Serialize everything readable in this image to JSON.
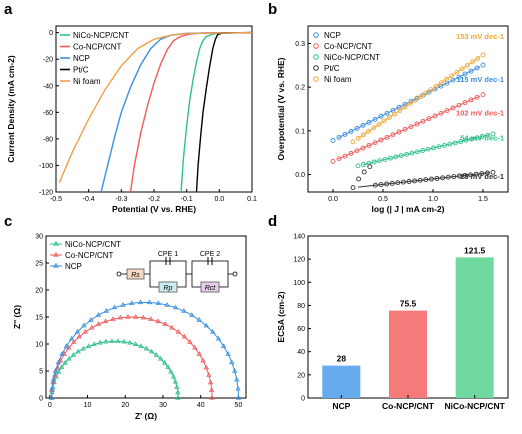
{
  "chart_data": [
    {
      "panel": "a",
      "type": "line",
      "xlabel": "Potential (V vs. RHE)",
      "ylabel": "Current Density (mA cm-2)",
      "xlim": [
        -0.5,
        0.1
      ],
      "ylim": [
        -120,
        5
      ],
      "xticks": [
        "-0.5",
        "-0.4",
        "-0.3",
        "-0.2",
        "-0.1",
        "0.0",
        "0.1"
      ],
      "yticks": [
        "-120",
        "-100",
        "-80",
        "-60",
        "-40",
        "-20",
        "0"
      ],
      "legend_position": "top-left",
      "series": [
        {
          "name": "NiCo-NCP/CNT",
          "color": "#2ec08a",
          "points": [
            [
              -0.117,
              -120
            ],
            [
              -0.11,
              -95
            ],
            [
              -0.1,
              -70
            ],
            [
              -0.09,
              -50
            ],
            [
              -0.08,
              -35
            ],
            [
              -0.07,
              -22
            ],
            [
              -0.06,
              -12
            ],
            [
              -0.05,
              -6
            ],
            [
              -0.04,
              -3
            ],
            [
              -0.02,
              -1
            ],
            [
              0.0,
              -0.4
            ],
            [
              0.1,
              0
            ]
          ]
        },
        {
          "name": "Co-NCP/CNT",
          "color": "#f05a5a",
          "points": [
            [
              -0.272,
              -120
            ],
            [
              -0.26,
              -100
            ],
            [
              -0.24,
              -75
            ],
            [
              -0.22,
              -55
            ],
            [
              -0.2,
              -38
            ],
            [
              -0.18,
              -24
            ],
            [
              -0.16,
              -13
            ],
            [
              -0.14,
              -6
            ],
            [
              -0.12,
              -3
            ],
            [
              -0.09,
              -1
            ],
            [
              -0.05,
              -0.3
            ],
            [
              0.1,
              0
            ]
          ]
        },
        {
          "name": "NCP",
          "color": "#3b8fe0",
          "points": [
            [
              -0.362,
              -120
            ],
            [
              -0.34,
              -98
            ],
            [
              -0.32,
              -78
            ],
            [
              -0.3,
              -60
            ],
            [
              -0.27,
              -40
            ],
            [
              -0.24,
              -24
            ],
            [
              -0.21,
              -12
            ],
            [
              -0.18,
              -5
            ],
            [
              -0.15,
              -2
            ],
            [
              -0.1,
              -0.5
            ],
            [
              0.1,
              0
            ]
          ]
        },
        {
          "name": "Pt/C",
          "color": "#000000",
          "points": [
            [
              -0.07,
              -120
            ],
            [
              -0.065,
              -100
            ],
            [
              -0.058,
              -80
            ],
            [
              -0.05,
              -60
            ],
            [
              -0.04,
              -42
            ],
            [
              -0.03,
              -26
            ],
            [
              -0.02,
              -12
            ],
            [
              -0.012,
              -5
            ],
            [
              -0.005,
              -1.5
            ],
            [
              0.01,
              -0.3
            ],
            [
              0.1,
              0
            ]
          ]
        },
        {
          "name": "Ni foam",
          "color": "#f0a04a",
          "points": [
            [
              -0.49,
              -113
            ],
            [
              -0.45,
              -90
            ],
            [
              -0.4,
              -65
            ],
            [
              -0.35,
              -43
            ],
            [
              -0.3,
              -25
            ],
            [
              -0.25,
              -12
            ],
            [
              -0.2,
              -5
            ],
            [
              -0.15,
              -2
            ],
            [
              -0.1,
              -0.7
            ],
            [
              0.1,
              0
            ]
          ]
        }
      ]
    },
    {
      "panel": "b",
      "type": "scatter",
      "xlabel": "log (| J | mA cm-2)",
      "ylabel": "Overpotential (V vs. RHE)",
      "xlim": [
        -0.25,
        1.75
      ],
      "ylim": [
        -0.04,
        0.34
      ],
      "xticks": [
        "0.0",
        "0.5",
        "1.0",
        "1.5"
      ],
      "yticks": [
        "0.0",
        "0.1",
        "0.2",
        "0.3"
      ],
      "legend_position": "top-left",
      "series": [
        {
          "name": "NCP",
          "color": "#3b8fe0",
          "tafel": "115 mV dec-1",
          "x_range": [
            0.0,
            1.5
          ],
          "y_start": 0.078,
          "slope": 0.115
        },
        {
          "name": "Co-NCP/CNT",
          "color": "#f05a5a",
          "tafel": "102 mV dec-1",
          "x_range": [
            0.0,
            1.5
          ],
          "y_start": 0.03,
          "slope": 0.102
        },
        {
          "name": "NiCo-NCP/CNT",
          "color": "#2ec08a",
          "tafel": "54 mV dec-1",
          "x_range": [
            0.25,
            1.6
          ],
          "y_start": 0.02,
          "slope": 0.054
        },
        {
          "name": "Pt/C",
          "color": "#333333",
          "tafel": "25 mV dec-1",
          "x_range": [
            0.2,
            1.6
          ],
          "y_start": -0.03,
          "slope": 0.025
        },
        {
          "name": "Ni foam",
          "color": "#f0a83a",
          "tafel": "153 mV dec-1",
          "x_range": [
            0.2,
            1.5
          ],
          "y_start": 0.075,
          "slope": 0.153
        }
      ]
    },
    {
      "panel": "c",
      "type": "scatter",
      "xlabel": "Z' (Ω)",
      "ylabel": "Z'' (Ω)",
      "xlim": [
        -1,
        52
      ],
      "ylim": [
        0,
        30
      ],
      "xticks": [
        "0",
        "10",
        "20",
        "30",
        "40",
        "50"
      ],
      "yticks": [
        "0",
        "5",
        "10",
        "15",
        "20",
        "25",
        "30"
      ],
      "legend_position": "top-left",
      "circuit": {
        "rs": "Rs",
        "rp": "Rp",
        "rct": "Rct",
        "cpe1": "CPE 1",
        "cpe2": "CPE 2"
      },
      "series": [
        {
          "name": "NiCo-NCP/CNT",
          "color": "#2ec08a",
          "x_start": 0.5,
          "x_end": 34.0,
          "peak": 10.5
        },
        {
          "name": "Co-NCP/CNT",
          "color": "#f05a5a",
          "x_start": 0.5,
          "x_end": 43.0,
          "peak": 15.0
        },
        {
          "name": "NCP",
          "color": "#3b8fe0",
          "x_start": 0.5,
          "x_end": 50.0,
          "peak": 17.7
        }
      ]
    },
    {
      "panel": "d",
      "type": "bar",
      "ylabel": "ECSA (cm-2)",
      "ylim": [
        0,
        140
      ],
      "yticks": [
        "0",
        "20",
        "40",
        "60",
        "80",
        "100",
        "120",
        "140"
      ],
      "categories": [
        "NCP",
        "Co-NCP/CNT",
        "NiCo-NCP/CNT"
      ],
      "values": [
        28,
        75.5,
        121.5
      ],
      "value_labels": [
        "28",
        "75.5",
        "121.5"
      ],
      "colors": [
        "#66aaf0",
        "#f57a7a",
        "#6fd9a0"
      ]
    }
  ],
  "panels": {
    "a": "a",
    "b": "b",
    "c": "c",
    "d": "d"
  }
}
